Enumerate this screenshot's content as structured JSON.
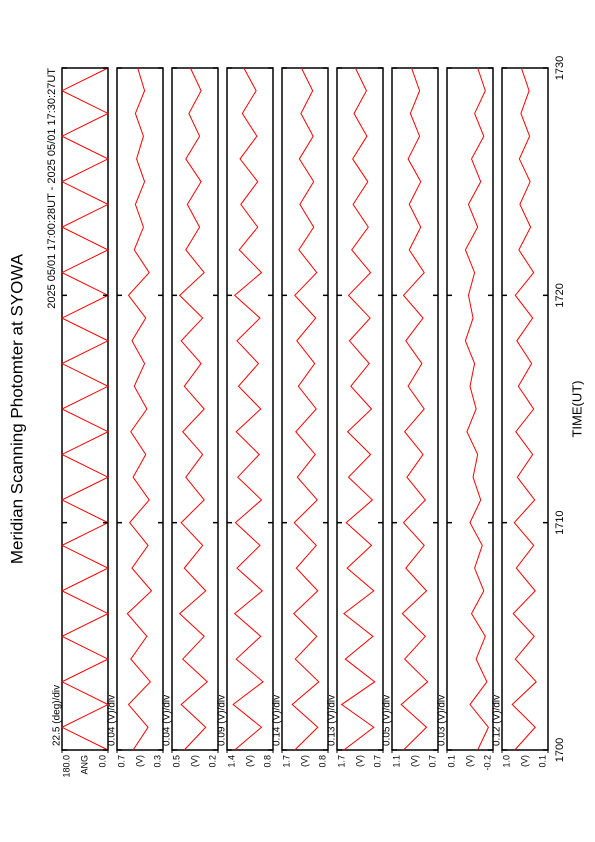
{
  "chart_data": [
    {
      "type": "line",
      "title": "Meridian Scanning Photomter at SYOWA",
      "time_range": "2025 05/01 17:00:28UT - 2025 05/01 17:30:27UT",
      "scale_label": "22.5 (deg)/div",
      "ylabel": "ANG",
      "color": "#ff0000",
      "ylim": [
        0,
        180
      ],
      "yticks": [
        {
          "value": 0,
          "label": "0.0"
        },
        {
          "value": 180,
          "label": "180.0"
        }
      ],
      "x": [
        1700,
        1701,
        1702,
        1703,
        1704,
        1705,
        1706,
        1707,
        1708,
        1709,
        1710,
        1711,
        1712,
        1713,
        1714,
        1715,
        1716,
        1717,
        1718,
        1719,
        1720,
        1721,
        1722,
        1723,
        1724,
        1725,
        1726,
        1727,
        1728,
        1729,
        1730
      ],
      "values": [
        0,
        180,
        0,
        180,
        0,
        180,
        0,
        180,
        0,
        180,
        0,
        180,
        0,
        180,
        0,
        180,
        0,
        180,
        0,
        180,
        0,
        180,
        0,
        180,
        0,
        180,
        0,
        180,
        0,
        180,
        0
      ]
    },
    {
      "type": "line",
      "scale_label": "0.04 (V)/div",
      "ylabel": "(V)",
      "color": "#ff0000",
      "ylim": [
        0.3,
        0.7
      ],
      "yticks": [
        0.3,
        0.7
      ],
      "x": [
        1700,
        1701,
        1702,
        1703,
        1704,
        1705,
        1706,
        1707,
        1708,
        1709,
        1710,
        1711,
        1712,
        1713,
        1714,
        1715,
        1716,
        1717,
        1718,
        1719,
        1720,
        1721,
        1722,
        1723,
        1724,
        1725,
        1726,
        1727,
        1728,
        1729,
        1730
      ],
      "values": [
        0.56,
        0.43,
        0.6,
        0.41,
        0.58,
        0.44,
        0.61,
        0.4,
        0.57,
        0.43,
        0.59,
        0.42,
        0.56,
        0.45,
        0.58,
        0.44,
        0.55,
        0.46,
        0.57,
        0.45,
        0.6,
        0.42,
        0.55,
        0.47,
        0.54,
        0.46,
        0.53,
        0.47,
        0.54,
        0.46,
        0.52
      ]
    },
    {
      "type": "line",
      "scale_label": "0.04 (V)/div",
      "ylabel": "(V)",
      "color": "#ff0000",
      "ylim": [
        0.2,
        0.5
      ],
      "yticks": [
        0.2,
        0.5
      ],
      "x": [
        1700,
        1701,
        1702,
        1703,
        1704,
        1705,
        1706,
        1707,
        1708,
        1709,
        1710,
        1711,
        1712,
        1713,
        1714,
        1715,
        1716,
        1717,
        1718,
        1719,
        1720,
        1721,
        1722,
        1723,
        1724,
        1725,
        1726,
        1727,
        1728,
        1729,
        1730
      ],
      "values": [
        0.42,
        0.28,
        0.44,
        0.27,
        0.43,
        0.29,
        0.45,
        0.28,
        0.42,
        0.3,
        0.44,
        0.29,
        0.41,
        0.3,
        0.43,
        0.29,
        0.42,
        0.31,
        0.44,
        0.3,
        0.45,
        0.29,
        0.41,
        0.32,
        0.4,
        0.31,
        0.41,
        0.32,
        0.39,
        0.31,
        0.38
      ]
    },
    {
      "type": "line",
      "scale_label": "0.09 (V)/div",
      "ylabel": "(V)",
      "color": "#ff0000",
      "ylim": [
        0.8,
        1.4
      ],
      "yticks": [
        0.8,
        1.4
      ],
      "x": [
        1700,
        1701,
        1702,
        1703,
        1704,
        1705,
        1706,
        1707,
        1708,
        1709,
        1710,
        1711,
        1712,
        1713,
        1714,
        1715,
        1716,
        1717,
        1718,
        1719,
        1720,
        1721,
        1722,
        1723,
        1724,
        1725,
        1726,
        1727,
        1728,
        1729,
        1730
      ],
      "values": [
        1.3,
        0.95,
        1.32,
        0.93,
        1.28,
        0.96,
        1.3,
        0.94,
        1.27,
        0.97,
        1.29,
        0.95,
        1.26,
        0.98,
        1.28,
        0.96,
        1.25,
        0.99,
        1.27,
        0.97,
        1.3,
        0.95,
        1.24,
        1.0,
        1.22,
        1.0,
        1.23,
        1.01,
        1.2,
        1.02,
        1.18
      ]
    },
    {
      "type": "line",
      "scale_label": "0.14 (V)/div",
      "ylabel": "(V)",
      "color": "#ff0000",
      "ylim": [
        0.8,
        1.7
      ],
      "yticks": [
        0.8,
        1.7
      ],
      "x": [
        1700,
        1701,
        1702,
        1703,
        1704,
        1705,
        1706,
        1707,
        1708,
        1709,
        1710,
        1711,
        1712,
        1713,
        1714,
        1715,
        1716,
        1717,
        1718,
        1719,
        1720,
        1721,
        1722,
        1723,
        1724,
        1725,
        1726,
        1727,
        1728,
        1729,
        1730
      ],
      "values": [
        1.45,
        1.0,
        1.5,
        0.98,
        1.44,
        1.02,
        1.47,
        1.0,
        1.42,
        1.03,
        1.46,
        1.01,
        1.4,
        1.05,
        1.43,
        1.03,
        1.38,
        1.06,
        1.41,
        1.04,
        1.45,
        1.02,
        1.37,
        1.08,
        1.35,
        1.08,
        1.36,
        1.09,
        1.33,
        1.1,
        1.32
      ]
    },
    {
      "type": "line",
      "scale_label": "0.13 (V)/div",
      "ylabel": "(V)",
      "color": "#ff0000",
      "ylim": [
        0.7,
        1.7
      ],
      "yticks": [
        0.7,
        1.7
      ],
      "x": [
        1700,
        1701,
        1702,
        1703,
        1704,
        1705,
        1706,
        1707,
        1708,
        1709,
        1710,
        1711,
        1712,
        1713,
        1714,
        1715,
        1716,
        1717,
        1718,
        1719,
        1720,
        1721,
        1722,
        1723,
        1724,
        1725,
        1726,
        1727,
        1728,
        1729,
        1730
      ],
      "values": [
        1.55,
        0.9,
        1.6,
        0.88,
        1.52,
        0.92,
        1.55,
        0.9,
        1.48,
        0.95,
        1.5,
        0.93,
        1.45,
        0.97,
        1.47,
        0.95,
        1.4,
        1.0,
        1.43,
        0.98,
        1.45,
        0.97,
        1.38,
        1.02,
        1.35,
        1.03,
        1.36,
        1.05,
        1.33,
        1.06,
        1.3
      ]
    },
    {
      "type": "line",
      "scale_label": "0.05 (V)/div",
      "ylabel": "(V)",
      "color": "#ff0000",
      "ylim": [
        0.7,
        1.1
      ],
      "yticks": [
        0.7,
        1.1
      ],
      "x": [
        1700,
        1701,
        1702,
        1703,
        1704,
        1705,
        1706,
        1707,
        1708,
        1709,
        1710,
        1711,
        1712,
        1713,
        1714,
        1715,
        1716,
        1717,
        1718,
        1719,
        1720,
        1721,
        1722,
        1723,
        1724,
        1725,
        1726,
        1727,
        1728,
        1729,
        1730
      ],
      "values": [
        1.0,
        0.8,
        1.02,
        0.79,
        0.99,
        0.81,
        1.01,
        0.8,
        0.98,
        0.82,
        1.0,
        0.81,
        0.97,
        0.83,
        0.99,
        0.82,
        0.96,
        0.84,
        0.98,
        0.83,
        1.0,
        0.82,
        0.95,
        0.85,
        0.95,
        0.85,
        0.96,
        0.86,
        0.94,
        0.86,
        0.93
      ]
    },
    {
      "type": "line",
      "scale_label": "0.03 (V)/div",
      "ylabel": "(V)",
      "color": "#ff0000",
      "ylim": [
        -0.2,
        0.1
      ],
      "yticks": [
        -0.2,
        0.1
      ],
      "x": [
        1700,
        1701,
        1702,
        1703,
        1704,
        1705,
        1706,
        1707,
        1708,
        1709,
        1710,
        1711,
        1712,
        1713,
        1714,
        1715,
        1716,
        1717,
        1718,
        1719,
        1720,
        1721,
        1722,
        1723,
        1724,
        1725,
        1726,
        1727,
        1728,
        1729,
        1730
      ],
      "values": [
        -0.1,
        -0.17,
        -0.05,
        -0.16,
        -0.09,
        -0.15,
        -0.06,
        -0.14,
        -0.08,
        -0.13,
        -0.05,
        -0.12,
        -0.07,
        -0.1,
        -0.03,
        -0.09,
        -0.05,
        -0.08,
        -0.02,
        -0.07,
        -0.04,
        -0.08,
        -0.02,
        -0.1,
        -0.04,
        -0.12,
        -0.06,
        -0.14,
        -0.08,
        -0.15,
        -0.1
      ]
    },
    {
      "type": "line",
      "scale_label": "0.12 (V)/div",
      "ylabel": "(V)",
      "color": "#ff0000",
      "ylim": [
        0.1,
        1.0
      ],
      "yticks": [
        0.1,
        {
          "value": 1,
          "label": "1.0"
        }
      ],
      "xlabel": "TIME(UT)",
      "xlim": [
        1700,
        1730
      ],
      "xticks": [
        1700,
        1710,
        1720,
        1730
      ],
      "x": [
        1700,
        1701,
        1702,
        1703,
        1704,
        1705,
        1706,
        1707,
        1708,
        1709,
        1710,
        1711,
        1712,
        1713,
        1714,
        1715,
        1716,
        1717,
        1718,
        1719,
        1720,
        1721,
        1722,
        1723,
        1724,
        1725,
        1726,
        1727,
        1728,
        1729,
        1730
      ],
      "values": [
        0.75,
        0.35,
        0.8,
        0.33,
        0.74,
        0.37,
        0.78,
        0.35,
        0.72,
        0.38,
        0.76,
        0.36,
        0.7,
        0.4,
        0.73,
        0.38,
        0.68,
        0.42,
        0.71,
        0.4,
        0.74,
        0.38,
        0.67,
        0.44,
        0.65,
        0.45,
        0.66,
        0.46,
        0.63,
        0.47,
        0.62
      ]
    }
  ]
}
